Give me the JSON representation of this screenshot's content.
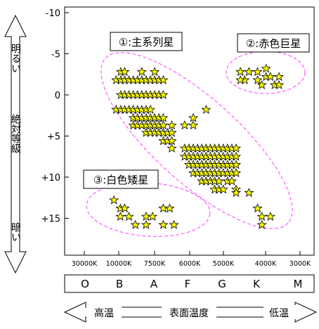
{
  "chart_data": {
    "type": "scatter",
    "y_axis": {
      "ylim": [
        -10,
        20
      ],
      "inverted": true,
      "ticks": [
        -10,
        -5,
        0,
        5,
        10,
        15
      ],
      "tick_labels": [
        "-10",
        "-5",
        "0",
        "+5",
        "+10",
        "+15"
      ]
    },
    "x_axis": {
      "temperature_ticks": [
        "30000K",
        "10000K",
        "7500K",
        "6000K",
        "5000K",
        "4000K",
        "3000K"
      ],
      "spectral_classes": [
        "O",
        "B",
        "A",
        "F",
        "G",
        "K",
        "M"
      ]
    },
    "left_axis": {
      "top_label": "明るい",
      "title": "絶対等級",
      "bottom_label": "暗い"
    },
    "bottom_axis": {
      "left_label": "高温",
      "title": "表面温度",
      "right_label": "低温"
    },
    "groups": [
      {
        "label": "①:主系列星"
      },
      {
        "label": "②:赤色巨星"
      },
      {
        "label": "③:白色矮星"
      }
    ],
    "series": [
      {
        "points": [
          [
            1.25,
            -1.8
          ],
          [
            1.25,
            1.8
          ],
          [
            1.8,
            -2.8
          ],
          [
            1.8,
            -1.8
          ],
          [
            1.8,
            0
          ],
          [
            1.8,
            1.8
          ],
          [
            2.25,
            -2.8
          ],
          [
            2.25,
            -1.8
          ],
          [
            2.25,
            0
          ],
          [
            2.25,
            1.8
          ],
          [
            2.75,
            -1.8
          ],
          [
            2.75,
            0
          ],
          [
            2.75,
            1.8
          ],
          [
            3.25,
            -1.8
          ],
          [
            3.25,
            0
          ],
          [
            3.25,
            1.8
          ],
          [
            3.75,
            -1.8
          ],
          [
            3.75,
            0
          ],
          [
            3.75,
            1.8
          ],
          [
            4.25,
            -2.8
          ],
          [
            4.25,
            -1.8
          ],
          [
            4.25,
            0
          ],
          [
            4.25,
            1.8
          ],
          [
            4.75,
            -1.8
          ],
          [
            4.75,
            0
          ],
          [
            4.75,
            1.8
          ],
          [
            5.25,
            -1.8
          ],
          [
            5.25,
            0
          ],
          [
            5.25,
            1.8
          ],
          [
            5.75,
            -2.8
          ],
          [
            5.75,
            -1.8
          ],
          [
            5.75,
            0
          ],
          [
            6.25,
            -1.8
          ],
          [
            6.25,
            0
          ],
          [
            6.75,
            -1.8
          ],
          [
            6.75,
            0
          ],
          [
            3.25,
            2.8
          ],
          [
            3.25,
            3.7
          ],
          [
            3.75,
            2.8
          ],
          [
            3.75,
            3.7
          ],
          [
            4.25,
            2.8
          ],
          [
            4.75,
            2.8
          ],
          [
            5.25,
            2.8
          ],
          [
            5.75,
            2.8
          ],
          [
            6.25,
            2.8
          ],
          [
            6.75,
            2.8
          ],
          [
            4.25,
            3.7
          ],
          [
            4.75,
            3.7
          ],
          [
            5.25,
            3.7
          ],
          [
            5.75,
            3.7
          ],
          [
            6.25,
            3.7
          ],
          [
            6.75,
            3.7
          ],
          [
            4.75,
            4.6
          ],
          [
            5.25,
            4.6
          ],
          [
            5.75,
            4.6
          ],
          [
            6.25,
            4.6
          ],
          [
            6.75,
            4.6
          ],
          [
            7.25,
            4.6
          ],
          [
            6.75,
            5.6
          ],
          [
            7.25,
            5.6
          ],
          [
            7.75,
            3.7
          ],
          [
            7.75,
            4.6
          ],
          [
            9.25,
            3.7
          ],
          [
            10.25,
            3.7
          ],
          [
            11.75,
            1.8
          ],
          [
            10.25,
            2.8
          ],
          [
            7.75,
            5.6
          ],
          [
            7.75,
            6.5
          ],
          [
            9.25,
            6.5
          ],
          [
            9.75,
            6.5
          ],
          [
            10.25,
            6.5
          ],
          [
            10.75,
            6.5
          ],
          [
            11.25,
            6.5
          ],
          [
            11.75,
            6.5
          ],
          [
            12.25,
            6.5
          ],
          [
            12.75,
            6.5
          ],
          [
            13.25,
            6.5
          ],
          [
            13.75,
            6.5
          ],
          [
            14.25,
            6.5
          ],
          [
            14.75,
            6.5
          ],
          [
            15.25,
            6.5
          ],
          [
            9.25,
            7.5
          ],
          [
            9.75,
            7.5
          ],
          [
            10.25,
            7.5
          ],
          [
            10.75,
            7.5
          ],
          [
            11.25,
            7.5
          ],
          [
            11.75,
            7.5
          ],
          [
            12.25,
            7.5
          ],
          [
            12.75,
            7.5
          ],
          [
            13.25,
            7.5
          ],
          [
            13.75,
            7.5
          ],
          [
            14.25,
            7.5
          ],
          [
            14.75,
            7.5
          ],
          [
            15.25,
            7.5
          ],
          [
            9.75,
            8.5
          ],
          [
            10.25,
            8.5
          ],
          [
            10.75,
            8.5
          ],
          [
            11.25,
            8.5
          ],
          [
            11.75,
            8.5
          ],
          [
            12.25,
            8.5
          ],
          [
            12.75,
            8.5
          ],
          [
            13.25,
            8.5
          ],
          [
            13.75,
            8.5
          ],
          [
            14.25,
            8.5
          ],
          [
            14.75,
            8.5
          ],
          [
            15.25,
            8.5
          ],
          [
            10.25,
            9.5
          ],
          [
            10.75,
            9.5
          ],
          [
            11.25,
            9.5
          ],
          [
            11.75,
            9.5
          ],
          [
            12.25,
            9.5
          ],
          [
            12.75,
            9.5
          ],
          [
            13.25,
            9.5
          ],
          [
            13.75,
            9.5
          ],
          [
            14.25,
            9.5
          ],
          [
            14.75,
            9.5
          ],
          [
            15.25,
            9.5
          ],
          [
            11.25,
            10.5
          ],
          [
            11.75,
            10.5
          ],
          [
            12.25,
            10.5
          ],
          [
            12.75,
            10.5
          ],
          [
            13.25,
            10.5
          ],
          [
            14.25,
            10.5
          ],
          [
            14.75,
            10.5
          ],
          [
            12.75,
            11.5
          ],
          [
            13.25,
            11.5
          ],
          [
            13.75,
            11.5
          ],
          [
            15.25,
            11.5
          ],
          [
            15.25,
            11.9
          ],
          [
            16.75,
            11.9
          ],
          [
            17.75,
            13.8
          ],
          [
            18.25,
            14.8
          ],
          [
            18.25,
            15.8
          ],
          [
            19.25,
            14.8
          ]
        ]
      },
      {
        "points": [
          [
            15.75,
            -2.8
          ],
          [
            16.25,
            -1.8
          ],
          [
            16.75,
            -2.8
          ],
          [
            17.75,
            -1.8
          ],
          [
            17.75,
            -2.8
          ],
          [
            18.75,
            -3.2
          ],
          [
            18.75,
            -2.2
          ],
          [
            19.25,
            -2.2
          ],
          [
            19.75,
            -1.2
          ],
          [
            20.25,
            -1.2
          ],
          [
            18.25,
            -1.2
          ],
          [
            15.75,
            -1.8
          ],
          [
            20.25,
            -2.2
          ]
        ]
      },
      {
        "points": [
          [
            1.0,
            12.8
          ],
          [
            1.75,
            13.8
          ],
          [
            2.25,
            13.8
          ],
          [
            1.75,
            14.8
          ],
          [
            2.75,
            14.8
          ],
          [
            3.5,
            15.8
          ],
          [
            4.75,
            14.8
          ],
          [
            4.75,
            15.8
          ],
          [
            5.5,
            14.8
          ],
          [
            6.75,
            13.8
          ],
          [
            7.5,
            13.8
          ],
          [
            6.75,
            15.8
          ],
          [
            8.0,
            15.8
          ]
        ]
      }
    ]
  }
}
